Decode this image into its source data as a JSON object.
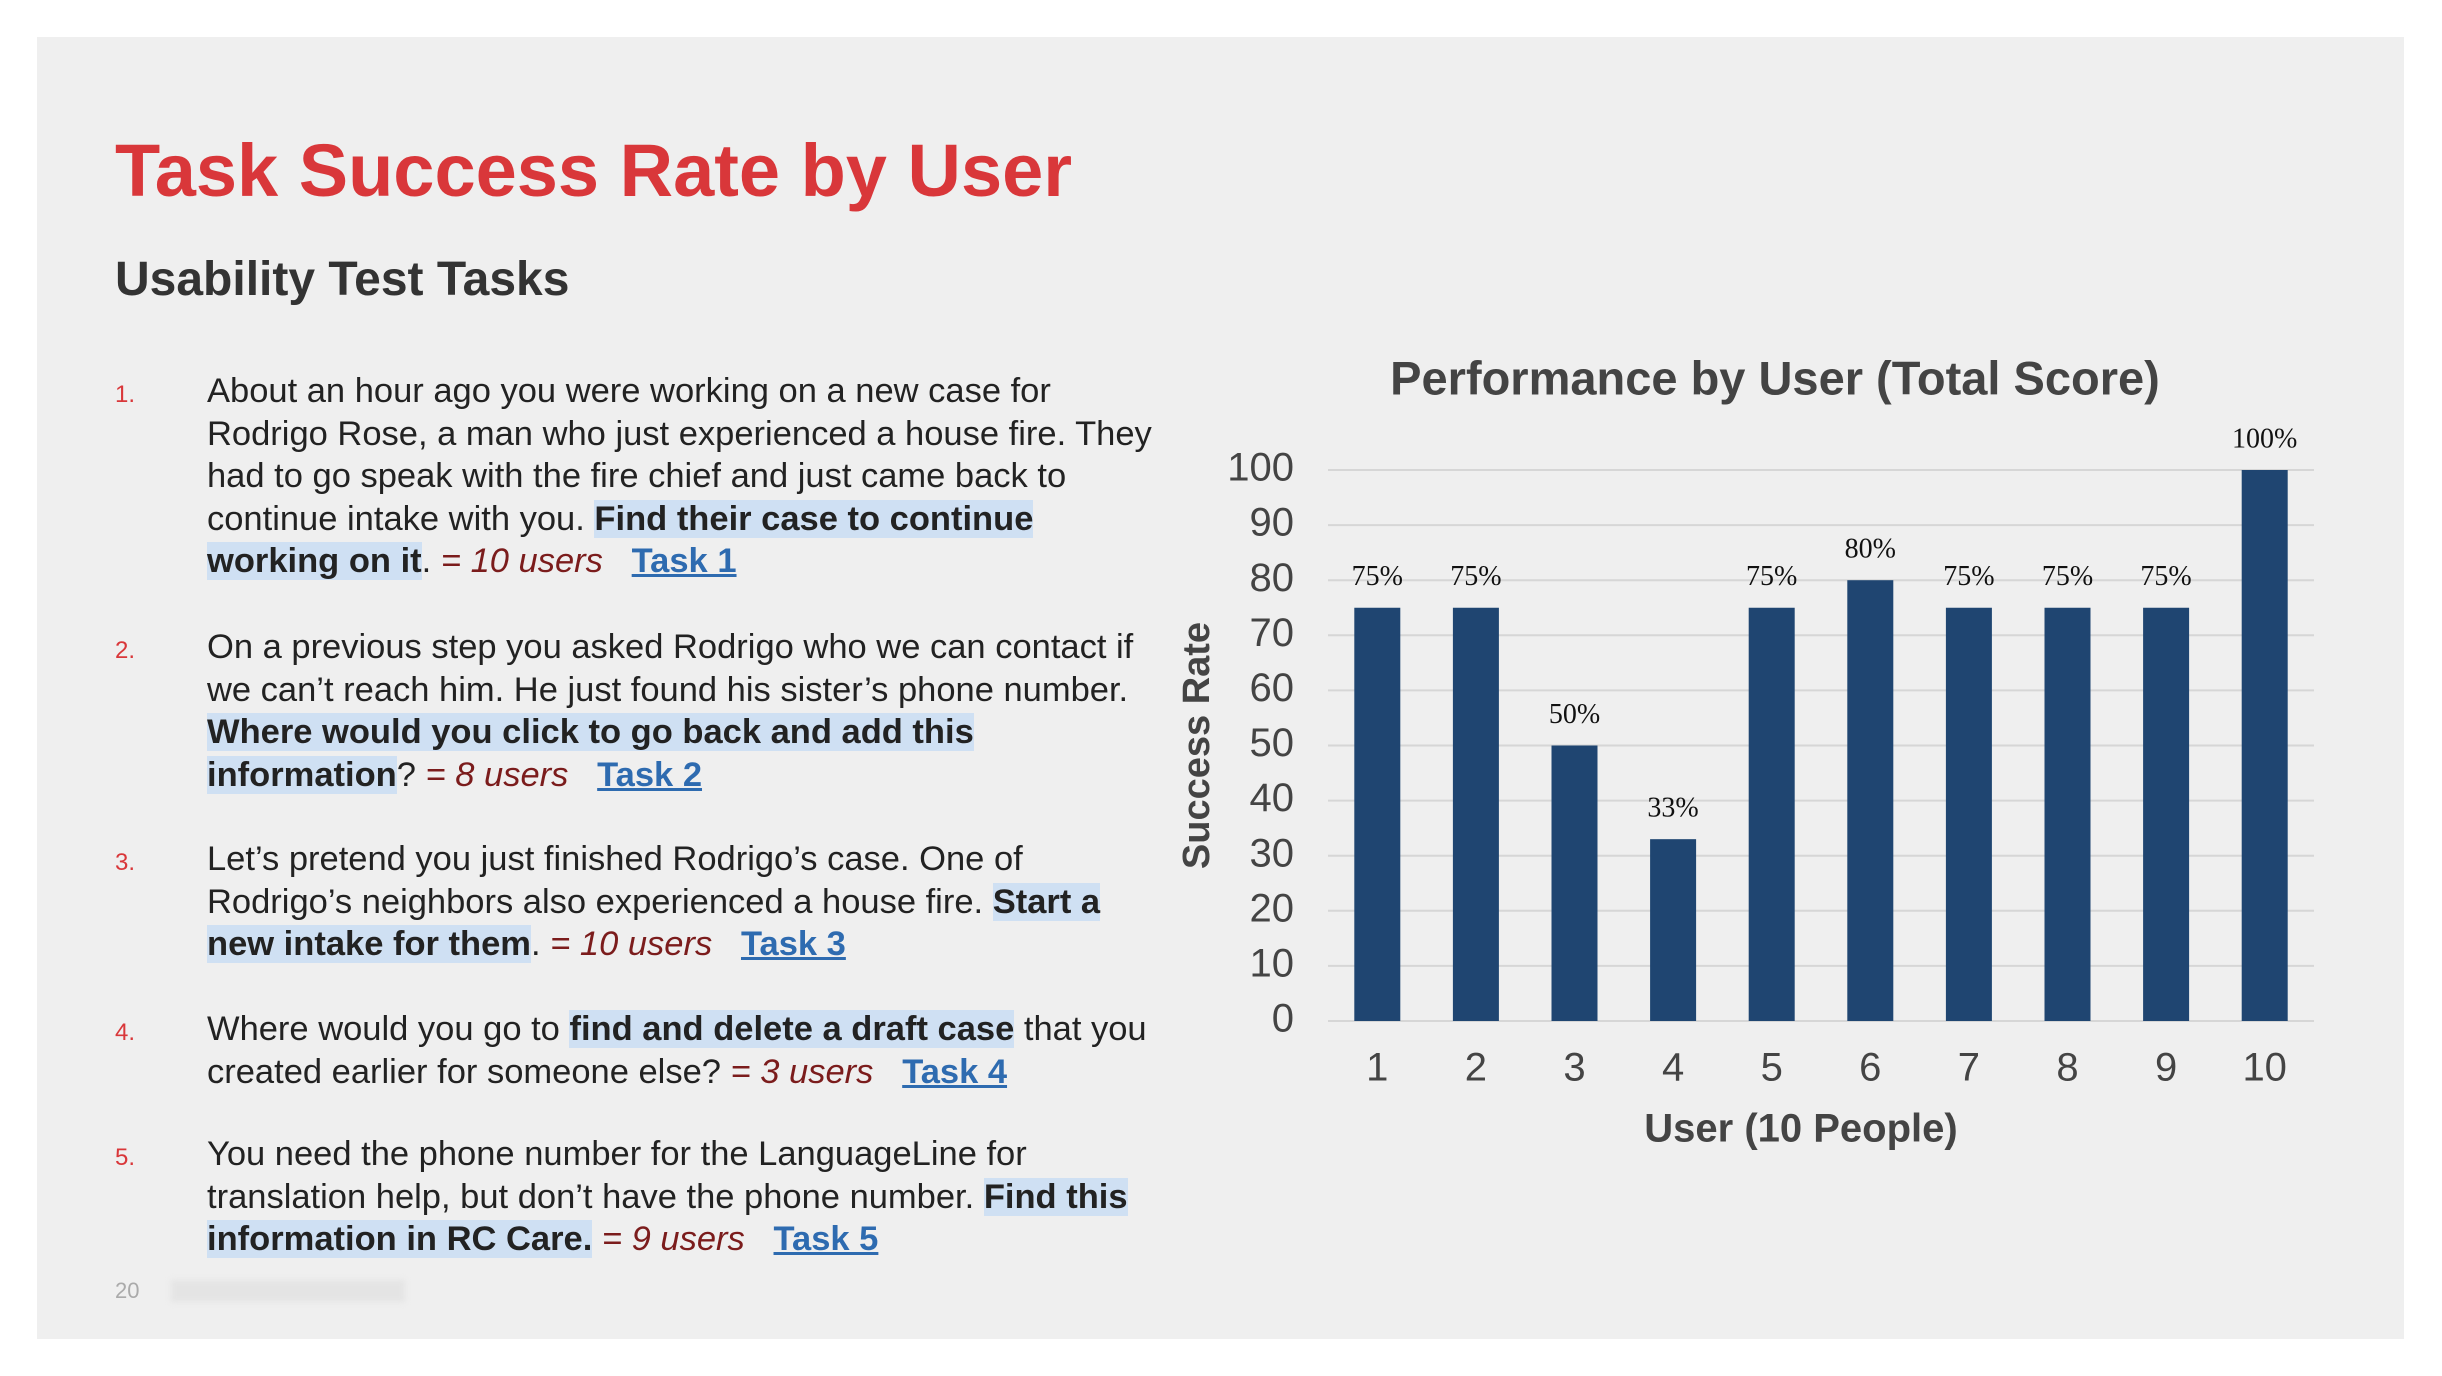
{
  "title": "Task Success Rate by User",
  "subtitle": "Usability Test Tasks",
  "tasks": [
    {
      "number": "1.",
      "before": "About an hour ago you were working on a new case for Rodrigo Rose, a man who just experienced a house fire. They had to go speak with the fire chief and just came back to continue intake with you.",
      "action": "Find their case to continue working on it",
      "after": ".",
      "result": "= 10 users",
      "link": "Task 1"
    },
    {
      "number": "2.",
      "before": "On a previous step you asked Rodrigo who we can contact if we can’t reach him. He just found his sister’s phone number.",
      "action": "Where would you click to go back and add this information",
      "after": "?",
      "result": "= 8 users",
      "link": "Task 2"
    },
    {
      "number": "3.",
      "before": "Let’s pretend you just finished Rodrigo’s case. One of Rodrigo’s neighbors also experienced a house fire.",
      "action": "Start a new intake for them",
      "after": ".",
      "result": "= 10 users",
      "link": "Task 3"
    },
    {
      "number": "4.",
      "before": "Where would you go to",
      "action": "find and delete a draft case",
      "after": "that you created earlier for someone else?",
      "result": "= 3 users",
      "link": "Task 4"
    },
    {
      "number": "5.",
      "before": "You need the phone number for the LanguageLine for translation help, but don’t have the phone number.",
      "action": "Find this information in RC Care.",
      "result": "= 9 users",
      "link": "Task 5"
    }
  ],
  "page_number": "20",
  "chart_data": {
    "type": "bar",
    "title": "Performance by User (Total Score)",
    "x_label": "User (10 People)",
    "y_label": "Success Rate",
    "categories": [
      "1",
      "2",
      "3",
      "4",
      "5",
      "6",
      "7",
      "8",
      "9",
      "10"
    ],
    "values": [
      75,
      75,
      50,
      33,
      75,
      80,
      75,
      75,
      75,
      100
    ],
    "value_labels": [
      "75%",
      "75%",
      "50%",
      "33%",
      "75%",
      "80%",
      "75%",
      "75%",
      "75%",
      "100%"
    ],
    "color": "#1f4571",
    "ylim": [
      0,
      100
    ],
    "yticks": [
      0,
      10,
      20,
      30,
      40,
      50,
      60,
      70,
      80,
      90,
      100
    ],
    "grid": true
  }
}
